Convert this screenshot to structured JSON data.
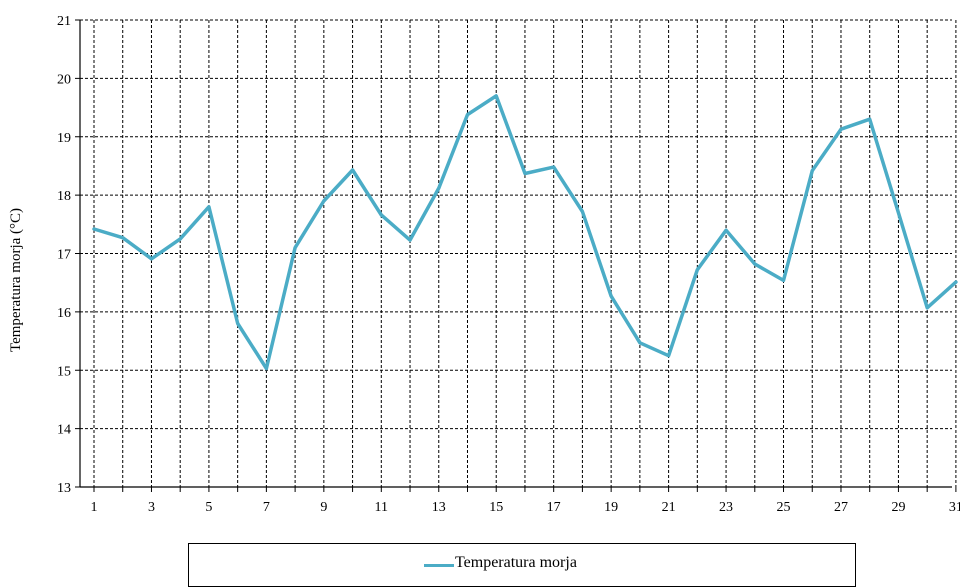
{
  "chart_data": {
    "type": "line",
    "title": "",
    "xlabel": "",
    "ylabel": "Temperatura morja (°C)",
    "x": [
      1,
      2,
      3,
      4,
      5,
      6,
      7,
      8,
      9,
      10,
      11,
      12,
      13,
      14,
      15,
      16,
      17,
      18,
      19,
      20,
      21,
      22,
      23,
      24,
      25,
      26,
      27,
      28,
      29,
      30,
      31
    ],
    "x_tick_labels": [
      "1",
      "3",
      "5",
      "7",
      "9",
      "11",
      "13",
      "15",
      "17",
      "19",
      "21",
      "23",
      "25",
      "27",
      "29",
      "31"
    ],
    "ylim": [
      13,
      21
    ],
    "y_tick_labels": [
      "13",
      "14",
      "15",
      "16",
      "17",
      "18",
      "19",
      "20",
      "21"
    ],
    "grid": {
      "horizontal": "dashed",
      "vertical": "dashed"
    },
    "legend_position": "bottom",
    "series": [
      {
        "name": "Temperatura morja",
        "color": "#4BACC6",
        "values": [
          17.42,
          17.27,
          16.91,
          17.25,
          17.8,
          15.8,
          15.03,
          17.1,
          17.9,
          18.43,
          17.66,
          17.23,
          18.12,
          19.38,
          19.7,
          18.37,
          18.48,
          17.72,
          16.27,
          15.47,
          15.25,
          16.72,
          17.4,
          16.82,
          16.54,
          18.42,
          19.13,
          19.3,
          17.7,
          16.07,
          16.51
        ]
      }
    ]
  }
}
